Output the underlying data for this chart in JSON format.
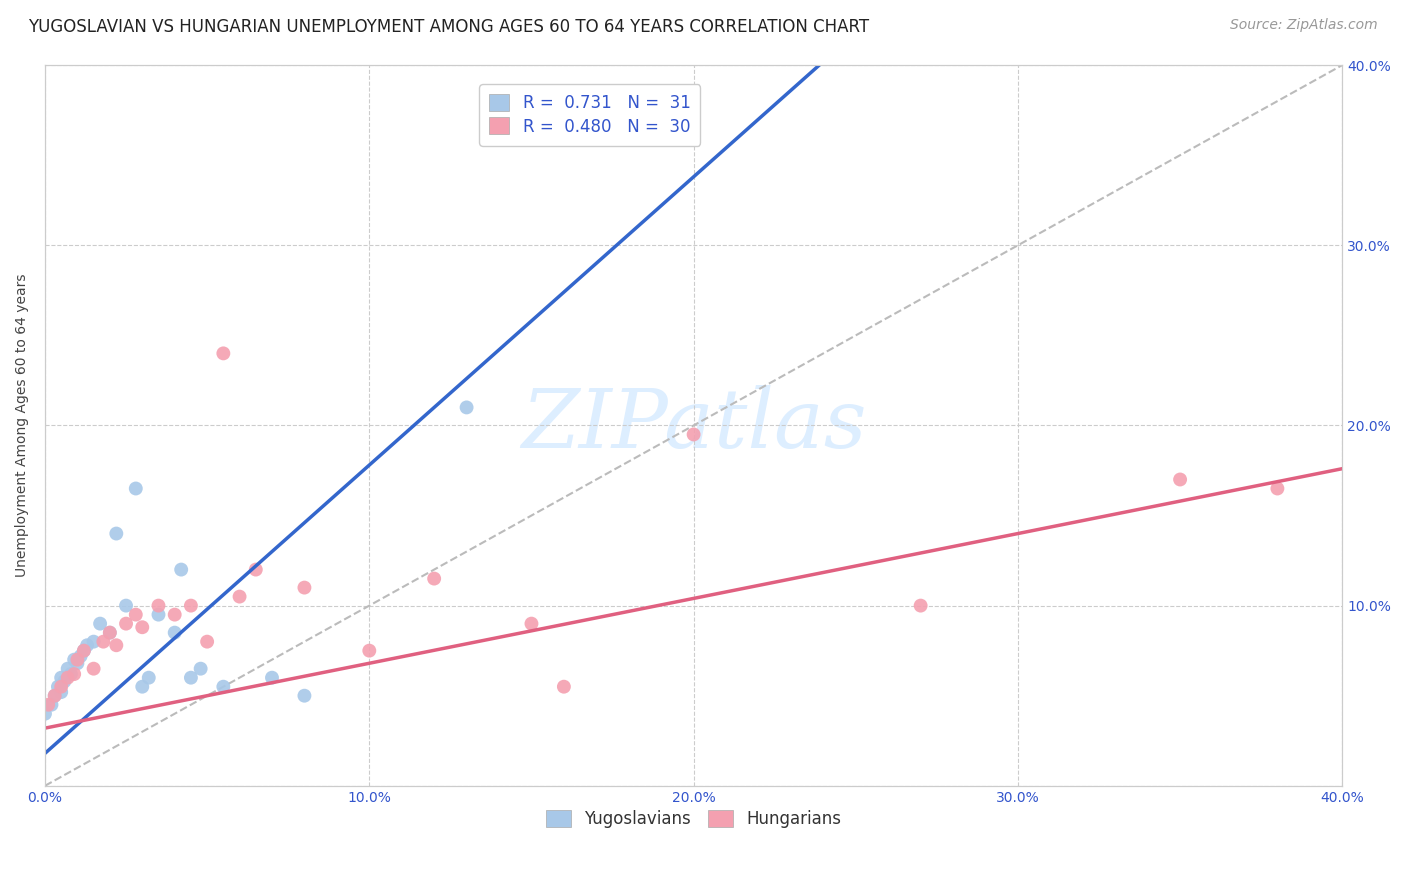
{
  "title": "YUGOSLAVIAN VS HUNGARIAN UNEMPLOYMENT AMONG AGES 60 TO 64 YEARS CORRELATION CHART",
  "source": "Source: ZipAtlas.com",
  "ylabel": "Unemployment Among Ages 60 to 64 years",
  "xlim": [
    0.0,
    0.4
  ],
  "ylim": [
    0.0,
    0.4
  ],
  "xticks": [
    0.0,
    0.1,
    0.2,
    0.3,
    0.4
  ],
  "yticks": [
    0.0,
    0.1,
    0.2,
    0.3,
    0.4
  ],
  "xticklabels": [
    "0.0%",
    "10.0%",
    "20.0%",
    "30.0%",
    "40.0%"
  ],
  "right_yticklabels": [
    "",
    "10.0%",
    "20.0%",
    "30.0%",
    "40.0%"
  ],
  "background_color": "#ffffff",
  "grid_color": "#cccccc",
  "yugoslavian_color": "#a8c8e8",
  "hungarian_color": "#f4a0b0",
  "yugoslavian_line_color": "#3366cc",
  "hungarian_line_color": "#e06080",
  "diagonal_color": "#bbbbbb",
  "R_yugo": 0.731,
  "N_yugo": 31,
  "R_hung": 0.48,
  "N_hung": 30,
  "yugo_scatter_x": [
    0.0,
    0.002,
    0.003,
    0.004,
    0.005,
    0.005,
    0.006,
    0.007,
    0.008,
    0.009,
    0.01,
    0.011,
    0.012,
    0.013,
    0.015,
    0.017,
    0.02,
    0.022,
    0.025,
    0.028,
    0.03,
    0.032,
    0.035,
    0.04,
    0.042,
    0.045,
    0.048,
    0.055,
    0.07,
    0.08,
    0.13
  ],
  "yugo_scatter_y": [
    0.04,
    0.045,
    0.05,
    0.055,
    0.052,
    0.06,
    0.058,
    0.065,
    0.062,
    0.07,
    0.068,
    0.072,
    0.075,
    0.078,
    0.08,
    0.09,
    0.085,
    0.14,
    0.1,
    0.165,
    0.055,
    0.06,
    0.095,
    0.085,
    0.12,
    0.06,
    0.065,
    0.055,
    0.06,
    0.05,
    0.21
  ],
  "hung_scatter_x": [
    0.001,
    0.003,
    0.005,
    0.007,
    0.009,
    0.01,
    0.012,
    0.015,
    0.018,
    0.02,
    0.022,
    0.025,
    0.028,
    0.03,
    0.035,
    0.04,
    0.045,
    0.05,
    0.055,
    0.06,
    0.065,
    0.08,
    0.1,
    0.12,
    0.15,
    0.16,
    0.2,
    0.27,
    0.35,
    0.38
  ],
  "hung_scatter_y": [
    0.045,
    0.05,
    0.055,
    0.06,
    0.062,
    0.07,
    0.075,
    0.065,
    0.08,
    0.085,
    0.078,
    0.09,
    0.095,
    0.088,
    0.1,
    0.095,
    0.1,
    0.08,
    0.24,
    0.105,
    0.12,
    0.11,
    0.075,
    0.115,
    0.09,
    0.055,
    0.195,
    0.1,
    0.17,
    0.165
  ],
  "yugo_line_slope": 1.6,
  "yugo_line_intercept": 0.018,
  "hung_line_slope": 0.36,
  "hung_line_intercept": 0.032,
  "marker_size": 100,
  "title_fontsize": 12,
  "source_fontsize": 10,
  "axis_label_fontsize": 10,
  "tick_fontsize": 10,
  "legend_fontsize": 12,
  "watermark_text": "ZIPatlas",
  "watermark_color": "#ddeeff",
  "legend_R_color": "#3355cc",
  "legend_N_color": "#3355cc",
  "tick_color": "#3355cc"
}
